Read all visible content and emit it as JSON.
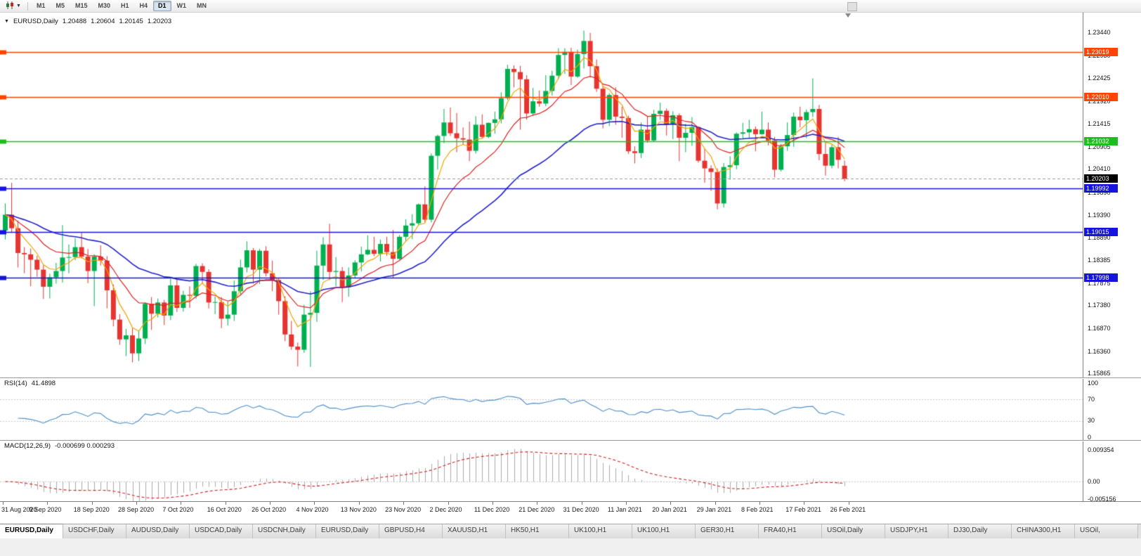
{
  "toolbar": {
    "timeframes": [
      "M1",
      "M5",
      "M15",
      "M30",
      "H1",
      "H4",
      "D1",
      "W1",
      "MN"
    ],
    "active_timeframe": "D1"
  },
  "chart_header": {
    "symbol": "EURUSD,Daily",
    "open": "1.20488",
    "high": "1.20604",
    "low": "1.20145",
    "close": "1.20203"
  },
  "price_axis": {
    "ticks": [
      "1.23440",
      "1.22930",
      "1.22425",
      "1.21920",
      "1.21415",
      "1.20905",
      "1.20410",
      "1.19890",
      "1.19390",
      "1.18890",
      "1.18385",
      "1.17875",
      "1.17380",
      "1.16870",
      "1.16360",
      "1.15865"
    ]
  },
  "date_axis": {
    "labels": [
      "31 Aug 2020",
      "9 Sep 2020",
      "18 Sep 2020",
      "28 Sep 2020",
      "7 Oct 2020",
      "16 Oct 2020",
      "26 Oct 2020",
      "4 Nov 2020",
      "13 Nov 2020",
      "23 Nov 2020",
      "2 Dec 2020",
      "11 Dec 2020",
      "21 Dec 2020",
      "31 Dec 2020",
      "11 Jan 2021",
      "20 Jan 2021",
      "29 Jan 2021",
      "8 Feb 2021",
      "17 Feb 2021",
      "26 Feb 2021"
    ]
  },
  "rsi_panel": {
    "name": "RSI(14)",
    "value": "41.4898",
    "axis_labels": [
      "100",
      "70",
      "30",
      "0"
    ]
  },
  "macd_panel": {
    "name": "MACD(12,26,9)",
    "values": "-0.000699 0.000293",
    "axis_labels": [
      "0.009354",
      "0.00",
      "-0.005156"
    ]
  },
  "tabs": {
    "active_index": 0,
    "items": [
      "EURUSD,Daily",
      "USDCHF,Daily",
      "AUDUSD,Daily",
      "USDCAD,Daily",
      "USDCNH,Daily",
      "EURUSD,Daily",
      "GBPUSD,H4",
      "XAUUSD,H1",
      "HK50,H1",
      "UK100,H1",
      "UK100,H1",
      "GER30,H1",
      "FRA40,H1",
      "USOil,Daily",
      "USDJPY,H1",
      "DJ30,Daily",
      "CHINA300,H1",
      "USOil,"
    ]
  },
  "colors": {
    "bull": "#00B050",
    "bear": "#E63430",
    "ma_fast": "#F0A500",
    "ma_medium": "#E02020",
    "ma_slow": "#2222CC",
    "rsi_line": "#4D8FCC",
    "rsi_levels": "#C8C8C8",
    "macd_histogram": "#ABABAB",
    "macd_signal": "#D02020",
    "current_price_tag": "#000000",
    "current_price_line": "#9a9a9a"
  },
  "chart_data": {
    "type": "candlestick",
    "symbol": "EURUSD",
    "timeframe": "Daily",
    "ylim": [
      1.158,
      1.2389
    ],
    "moving_averages": [
      {
        "name": "fast-ma",
        "period": 5,
        "color": "#F0A500"
      },
      {
        "name": "medium-ma",
        "period": 13,
        "color": "#E02020"
      },
      {
        "name": "slow-ma",
        "period": 34,
        "color": "#2222CC"
      }
    ],
    "horizontal_lines": [
      {
        "price": 1.23019,
        "label": "1.23019",
        "color": "#FF4500"
      },
      {
        "price": 1.2201,
        "label": "1.22010",
        "color": "#FF4500"
      },
      {
        "price": 1.21032,
        "label": "1.21032",
        "color": "#1DBE1D"
      },
      {
        "price": 1.19992,
        "label": "1.19992",
        "color": "#1414DC"
      },
      {
        "price": 1.19015,
        "label": "1.19015",
        "color": "#1414DC"
      },
      {
        "price": 1.17998,
        "label": "1.17998",
        "color": "#1414DC"
      }
    ],
    "current_price": {
      "value": 1.20203,
      "label": "1.20203"
    },
    "indicators": {
      "rsi": {
        "period": 14,
        "last_value": 41.4898,
        "levels": [
          70,
          30
        ],
        "range": [
          0,
          100
        ]
      },
      "macd": {
        "fast": 12,
        "slow": 26,
        "signal": 9,
        "last_macd": -0.000699,
        "last_signal": 0.000293,
        "range": [
          -0.005156,
          0.009354
        ]
      }
    },
    "candles": [
      [
        1.1905,
        1.1965,
        1.1885,
        1.194
      ],
      [
        1.194,
        1.2011,
        1.19,
        1.191
      ],
      [
        1.191,
        1.1927,
        1.1823,
        1.1855
      ],
      [
        1.1855,
        1.1868,
        1.181,
        1.1852
      ],
      [
        1.1852,
        1.1865,
        1.1781,
        1.184
      ],
      [
        1.184,
        1.1849,
        1.1802,
        1.1818
      ],
      [
        1.1818,
        1.1828,
        1.1753,
        1.178
      ],
      [
        1.178,
        1.1809,
        1.1754,
        1.1801
      ],
      [
        1.1801,
        1.1833,
        1.1787,
        1.1815
      ],
      [
        1.1815,
        1.1917,
        1.1789,
        1.1845
      ],
      [
        1.1845,
        1.1874,
        1.181,
        1.1846
      ],
      [
        1.1846,
        1.1888,
        1.1839,
        1.1868
      ],
      [
        1.1868,
        1.19,
        1.1843,
        1.1847
      ],
      [
        1.1847,
        1.1864,
        1.1788,
        1.1815
      ],
      [
        1.1815,
        1.1852,
        1.1737,
        1.1847
      ],
      [
        1.1847,
        1.1872,
        1.1827,
        1.1838
      ],
      [
        1.1838,
        1.1848,
        1.1732,
        1.1772
      ],
      [
        1.1772,
        1.1785,
        1.1692,
        1.1707
      ],
      [
        1.1707,
        1.1719,
        1.1651,
        1.1663
      ],
      [
        1.1663,
        1.1686,
        1.1626,
        1.1672
      ],
      [
        1.1672,
        1.1688,
        1.1612,
        1.1632
      ],
      [
        1.1632,
        1.1683,
        1.1615,
        1.1665
      ],
      [
        1.1665,
        1.1745,
        1.1653,
        1.1742
      ],
      [
        1.1742,
        1.1757,
        1.1684,
        1.172
      ],
      [
        1.172,
        1.1754,
        1.1712,
        1.1745
      ],
      [
        1.1745,
        1.1751,
        1.1695,
        1.1716
      ],
      [
        1.1716,
        1.1798,
        1.1706,
        1.1783
      ],
      [
        1.1783,
        1.1796,
        1.1724,
        1.1733
      ],
      [
        1.1733,
        1.1771,
        1.1725,
        1.1762
      ],
      [
        1.1762,
        1.1781,
        1.1733,
        1.176
      ],
      [
        1.176,
        1.1831,
        1.1753,
        1.1826
      ],
      [
        1.1826,
        1.1832,
        1.1786,
        1.1813
      ],
      [
        1.1813,
        1.1819,
        1.1732,
        1.1745
      ],
      [
        1.1745,
        1.1758,
        1.1719,
        1.1746
      ],
      [
        1.1746,
        1.1757,
        1.1688,
        1.1709
      ],
      [
        1.1709,
        1.1747,
        1.1694,
        1.1718
      ],
      [
        1.1718,
        1.1794,
        1.1704,
        1.177
      ],
      [
        1.177,
        1.184,
        1.1762,
        1.1823
      ],
      [
        1.1823,
        1.1881,
        1.1812,
        1.1861
      ],
      [
        1.1861,
        1.1866,
        1.1787,
        1.1818
      ],
      [
        1.1818,
        1.1864,
        1.1786,
        1.186
      ],
      [
        1.186,
        1.187,
        1.1803,
        1.181
      ],
      [
        1.181,
        1.1838,
        1.177,
        1.1795
      ],
      [
        1.1795,
        1.18,
        1.1718,
        1.1748
      ],
      [
        1.1748,
        1.1759,
        1.1659,
        1.1674
      ],
      [
        1.1674,
        1.1704,
        1.164,
        1.1647
      ],
      [
        1.1647,
        1.1656,
        1.1603,
        1.164
      ],
      [
        1.164,
        1.174,
        1.1633,
        1.1718
      ],
      [
        1.1718,
        1.177,
        1.1602,
        1.1722
      ],
      [
        1.1722,
        1.186,
        1.1702,
        1.1827
      ],
      [
        1.1827,
        1.189,
        1.1795,
        1.1874
      ],
      [
        1.1874,
        1.192,
        1.1795,
        1.1813
      ],
      [
        1.1813,
        1.1846,
        1.1781,
        1.1815
      ],
      [
        1.1815,
        1.1824,
        1.1746,
        1.1779
      ],
      [
        1.1779,
        1.1823,
        1.1758,
        1.1805
      ],
      [
        1.1805,
        1.1839,
        1.1799,
        1.1834
      ],
      [
        1.1834,
        1.1869,
        1.1814,
        1.1852
      ],
      [
        1.1852,
        1.1894,
        1.185,
        1.1862
      ],
      [
        1.1862,
        1.1891,
        1.1848,
        1.1853
      ],
      [
        1.1853,
        1.1885,
        1.1836,
        1.1875
      ],
      [
        1.1875,
        1.1891,
        1.1849,
        1.1857
      ],
      [
        1.1857,
        1.1906,
        1.18,
        1.1842
      ],
      [
        1.1842,
        1.1895,
        1.184,
        1.1891
      ],
      [
        1.1891,
        1.193,
        1.1881,
        1.1916
      ],
      [
        1.1916,
        1.1941,
        1.1886,
        1.1921
      ],
      [
        1.1921,
        1.1965,
        1.1917,
        1.1963
      ],
      [
        1.1963,
        1.2003,
        1.1923,
        1.1929
      ],
      [
        1.1929,
        1.2076,
        1.1923,
        1.2071
      ],
      [
        1.2071,
        1.2118,
        1.204,
        1.2115
      ],
      [
        1.2115,
        1.2175,
        1.2099,
        1.2145
      ],
      [
        1.2145,
        1.2178,
        1.2115,
        1.2121
      ],
      [
        1.2121,
        1.2166,
        1.2079,
        1.211
      ],
      [
        1.211,
        1.2134,
        1.2095,
        1.2107
      ],
      [
        1.2107,
        1.2147,
        1.2059,
        1.2082
      ],
      [
        1.2082,
        1.2159,
        1.2076,
        1.214
      ],
      [
        1.214,
        1.2163,
        1.2109,
        1.2113
      ],
      [
        1.2113,
        1.2145,
        1.211,
        1.2144
      ],
      [
        1.2144,
        1.2169,
        1.212,
        1.2152
      ],
      [
        1.2152,
        1.2212,
        1.2143,
        1.2199
      ],
      [
        1.2199,
        1.2273,
        1.2195,
        1.2264
      ],
      [
        1.2264,
        1.2272,
        1.2223,
        1.2257
      ],
      [
        1.2257,
        1.2271,
        1.2129,
        1.2241
      ],
      [
        1.2241,
        1.225,
        1.2151,
        1.2165
      ],
      [
        1.2165,
        1.2222,
        1.216,
        1.2192
      ],
      [
        1.2192,
        1.2216,
        1.218,
        1.2187
      ],
      [
        1.2187,
        1.225,
        1.2181,
        1.2215
      ],
      [
        1.2215,
        1.226,
        1.2205,
        1.2249
      ],
      [
        1.2249,
        1.231,
        1.2241,
        1.2295
      ],
      [
        1.2295,
        1.231,
        1.2253,
        1.2302
      ],
      [
        1.2302,
        1.2311,
        1.2228,
        1.2247
      ],
      [
        1.2247,
        1.2307,
        1.2244,
        1.2297
      ],
      [
        1.2297,
        1.2349,
        1.2265,
        1.2326
      ],
      [
        1.2326,
        1.2344,
        1.2245,
        1.227
      ],
      [
        1.227,
        1.2285,
        1.2213,
        1.222
      ],
      [
        1.222,
        1.2225,
        1.2132,
        1.2151
      ],
      [
        1.2151,
        1.221,
        1.2137,
        1.2206
      ],
      [
        1.2206,
        1.2223,
        1.214,
        1.2158
      ],
      [
        1.2158,
        1.218,
        1.2111,
        1.2155
      ],
      [
        1.2155,
        1.216,
        1.2075,
        1.2081
      ],
      [
        1.2081,
        1.2092,
        1.2054,
        1.2077
      ],
      [
        1.2077,
        1.2145,
        1.2066,
        1.2129
      ],
      [
        1.2129,
        1.2158,
        1.21,
        1.2105
      ],
      [
        1.2105,
        1.2173,
        1.2102,
        1.2164
      ],
      [
        1.2164,
        1.2189,
        1.2151,
        1.2171
      ],
      [
        1.2171,
        1.2176,
        1.2116,
        1.214
      ],
      [
        1.214,
        1.217,
        1.2108,
        1.2161
      ],
      [
        1.2161,
        1.2165,
        1.2059,
        1.2111
      ],
      [
        1.2111,
        1.2142,
        1.2079,
        1.2122
      ],
      [
        1.2122,
        1.2157,
        1.2093,
        1.2135
      ],
      [
        1.2135,
        1.2136,
        1.2056,
        1.206
      ],
      [
        1.206,
        1.2087,
        1.2011,
        1.2043
      ],
      [
        1.2043,
        1.205,
        1.1993,
        1.2035
      ],
      [
        1.2035,
        1.2043,
        1.1952,
        1.1965
      ],
      [
        1.1965,
        1.2055,
        1.1956,
        1.2046
      ],
      [
        1.2046,
        1.207,
        1.2018,
        1.205
      ],
      [
        1.205,
        1.2123,
        1.2041,
        1.212
      ],
      [
        1.212,
        1.2144,
        1.2108,
        1.2123
      ],
      [
        1.2123,
        1.2151,
        1.2109,
        1.213
      ],
      [
        1.213,
        1.2136,
        1.2081,
        1.2119
      ],
      [
        1.2119,
        1.2169,
        1.2118,
        1.2129
      ],
      [
        1.2129,
        1.2145,
        1.2094,
        1.2105
      ],
      [
        1.2105,
        1.2113,
        1.2023,
        1.204
      ],
      [
        1.204,
        1.2097,
        1.2036,
        1.2092
      ],
      [
        1.2092,
        1.2145,
        1.2082,
        1.2117
      ],
      [
        1.2117,
        1.2167,
        1.2091,
        1.2158
      ],
      [
        1.2158,
        1.218,
        1.2134,
        1.215
      ],
      [
        1.215,
        1.2174,
        1.211,
        1.2168
      ],
      [
        1.2168,
        1.2243,
        1.2157,
        1.2175
      ],
      [
        1.2175,
        1.2184,
        1.2061,
        1.2075
      ],
      [
        1.2075,
        1.2101,
        1.2027,
        1.2049
      ],
      [
        1.2049,
        1.2096,
        1.2043,
        1.209
      ],
      [
        1.209,
        1.2113,
        1.2043,
        1.2062
      ],
      [
        1.20488,
        1.20604,
        1.20145,
        1.20203
      ]
    ]
  }
}
